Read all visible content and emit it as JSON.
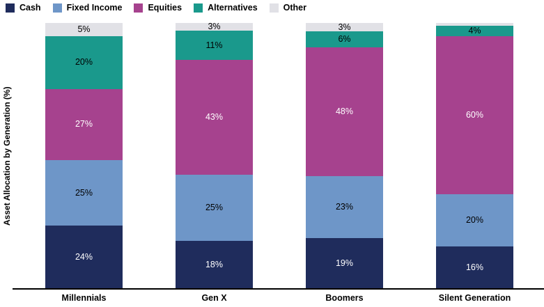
{
  "y_axis_title": "Asset Allocation by Generation (%)",
  "legend": [
    "Cash",
    "Fixed Income",
    "Equities",
    "Alternatives",
    "Other"
  ],
  "colors": {
    "cash": "#1F2C5C",
    "fixed_income": "#6E96C8",
    "equities": "#A6428E",
    "alternatives": "#1A998C",
    "other": "#E1E1E6",
    "axis_line": "#000000",
    "label_on_dark": "#FFFFFF",
    "label_on_light": "#000000"
  },
  "chart_data": {
    "type": "bar",
    "stacked": true,
    "normalized_full_height": true,
    "grid": false,
    "legend_position": "top-left",
    "ylabel": "Asset Allocation by Generation (%)",
    "xlabel": "",
    "categories": [
      "Millennials",
      "Gen X",
      "Boomers",
      "Silent Generation"
    ],
    "series": [
      {
        "name": "Cash",
        "color": "#1F2C5C",
        "text_color": "#FFFFFF",
        "values": [
          24,
          18,
          19,
          16
        ],
        "labels": [
          "24%",
          "18%",
          "19%",
          "16%"
        ]
      },
      {
        "name": "Fixed Income",
        "color": "#6E96C8",
        "text_color": "#000000",
        "values": [
          25,
          25,
          23,
          20
        ],
        "labels": [
          "25%",
          "25%",
          "23%",
          "20%"
        ]
      },
      {
        "name": "Equities",
        "color": "#A6428E",
        "text_color": "#FFFFFF",
        "values": [
          27,
          43,
          48,
          60
        ],
        "labels": [
          "27%",
          "43%",
          "48%",
          "60%"
        ]
      },
      {
        "name": "Alternatives",
        "color": "#1A998C",
        "text_color": "#000000",
        "values": [
          20,
          11,
          6,
          4
        ],
        "labels": [
          "20%",
          "11%",
          "6%",
          "4%"
        ]
      },
      {
        "name": "Other",
        "color": "#E1E1E6",
        "text_color": "#000000",
        "values": [
          5,
          3,
          3,
          1
        ],
        "labels": [
          "5%",
          "3%",
          "3%",
          ""
        ]
      }
    ],
    "stack_order_top_to_bottom": [
      "Other",
      "Alternatives",
      "Equities",
      "Fixed Income",
      "Cash"
    ]
  }
}
